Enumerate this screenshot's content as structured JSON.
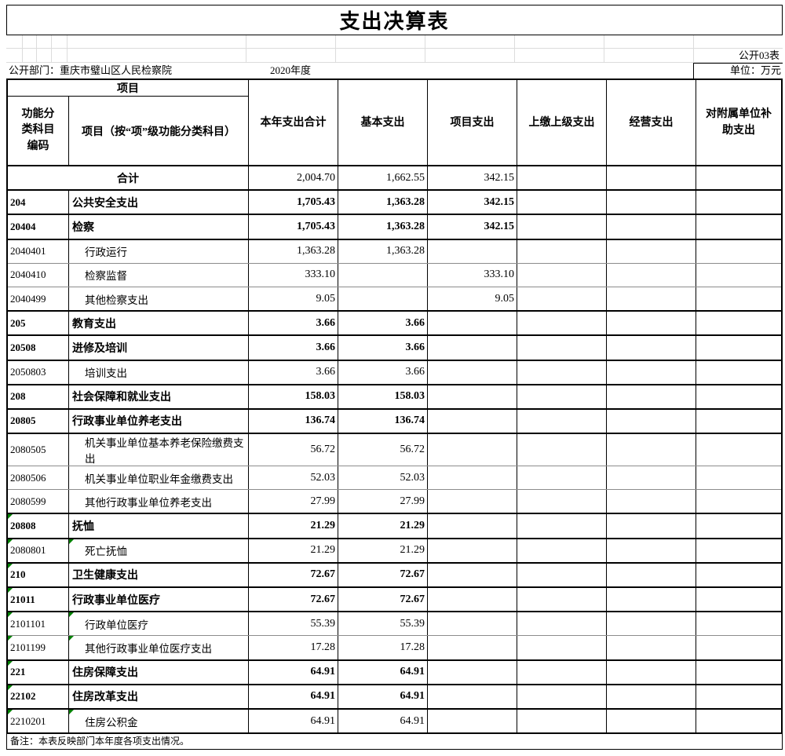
{
  "title": "支出决算表",
  "sheet_label": "公开03表",
  "dept": "公开部门：重庆市璧山区人民检察院",
  "year": "2020年度",
  "unit": "单位：万元",
  "note": "备注：本表反映部门本年度各项支出情况。",
  "colors": {
    "border": "#000000",
    "faint_grid": "#dcdcdc",
    "leaf_row_separator": "#8c8c8c",
    "error_marker_green": "#008000"
  },
  "table": {
    "group_header": "项目",
    "code_header": "功能分类科目编码",
    "name_header": "项目（按“项”级功能分类科目）",
    "columns": [
      "本年支出合计",
      "基本支出",
      "项目支出",
      "上缴上级支出",
      "经营支出",
      "对附属单位补助支出"
    ],
    "rows": [
      {
        "code": "",
        "name": "合计",
        "style": "total",
        "values": [
          "2,004.70",
          "1,662.55",
          "342.15",
          "",
          "",
          ""
        ]
      },
      {
        "code": "204",
        "name": "公共安全支出",
        "style": "sec",
        "values": [
          "1,705.43",
          "1,363.28",
          "342.15",
          "",
          "",
          ""
        ]
      },
      {
        "code": "20404",
        "name": "检察",
        "style": "sec",
        "values": [
          "1,705.43",
          "1,363.28",
          "342.15",
          "",
          "",
          ""
        ]
      },
      {
        "code": "2040401",
        "name": "行政运行",
        "style": "leaf",
        "values": [
          "1,363.28",
          "1,363.28",
          "",
          "",
          "",
          ""
        ]
      },
      {
        "code": "2040410",
        "name": "检察监督",
        "style": "leaf",
        "values": [
          "333.10",
          "",
          "333.10",
          "",
          "",
          ""
        ]
      },
      {
        "code": "2040499",
        "name": "其他检察支出",
        "style": "leaf",
        "values": [
          "9.05",
          "",
          "9.05",
          "",
          "",
          ""
        ]
      },
      {
        "code": "205",
        "name": "教育支出",
        "style": "sec",
        "values": [
          "3.66",
          "3.66",
          "",
          "",
          "",
          ""
        ]
      },
      {
        "code": "20508",
        "name": "进修及培训",
        "style": "sec",
        "values": [
          "3.66",
          "3.66",
          "",
          "",
          "",
          ""
        ]
      },
      {
        "code": "2050803",
        "name": "培训支出",
        "style": "leaf",
        "values": [
          "3.66",
          "3.66",
          "",
          "",
          "",
          ""
        ]
      },
      {
        "code": "208",
        "name": "社会保障和就业支出",
        "style": "sec",
        "values": [
          "158.03",
          "158.03",
          "",
          "",
          "",
          ""
        ]
      },
      {
        "code": "20805",
        "name": "行政事业单位养老支出",
        "style": "sec",
        "values": [
          "136.74",
          "136.74",
          "",
          "",
          "",
          ""
        ]
      },
      {
        "code": "2080505",
        "name": "机关事业单位基本养老保险缴费支出",
        "style": "leaf",
        "values": [
          "56.72",
          "56.72",
          "",
          "",
          "",
          ""
        ]
      },
      {
        "code": "2080506",
        "name": "机关事业单位职业年金缴费支出",
        "style": "leaf",
        "values": [
          "52.03",
          "52.03",
          "",
          "",
          "",
          ""
        ]
      },
      {
        "code": "2080599",
        "name": "其他行政事业单位养老支出",
        "style": "leaf",
        "values": [
          "27.99",
          "27.99",
          "",
          "",
          "",
          ""
        ]
      },
      {
        "code": "20808",
        "name": "抚恤",
        "style": "sec",
        "values": [
          "21.29",
          "21.29",
          "",
          "",
          "",
          ""
        ],
        "marker": "code"
      },
      {
        "code": "2080801",
        "name": "死亡抚恤",
        "style": "leaf",
        "values": [
          "21.29",
          "21.29",
          "",
          "",
          "",
          ""
        ],
        "marker": "both"
      },
      {
        "code": "210",
        "name": "卫生健康支出",
        "style": "sec",
        "values": [
          "72.67",
          "72.67",
          "",
          "",
          "",
          ""
        ],
        "marker": "code"
      },
      {
        "code": "21011",
        "name": "行政事业单位医疗",
        "style": "sec",
        "values": [
          "72.67",
          "72.67",
          "",
          "",
          "",
          ""
        ],
        "marker": "code"
      },
      {
        "code": "2101101",
        "name": "行政单位医疗",
        "style": "leaf",
        "values": [
          "55.39",
          "55.39",
          "",
          "",
          "",
          ""
        ],
        "marker": "both"
      },
      {
        "code": "2101199",
        "name": "其他行政事业单位医疗支出",
        "style": "leaf",
        "values": [
          "17.28",
          "17.28",
          "",
          "",
          "",
          ""
        ],
        "marker": "both"
      },
      {
        "code": "221",
        "name": "住房保障支出",
        "style": "sec",
        "values": [
          "64.91",
          "64.91",
          "",
          "",
          "",
          ""
        ],
        "marker": "code"
      },
      {
        "code": "22102",
        "name": "住房改革支出",
        "style": "sec",
        "values": [
          "64.91",
          "64.91",
          "",
          "",
          "",
          ""
        ],
        "marker": "code"
      },
      {
        "code": "2210201",
        "name": "住房公积金",
        "style": "leaf",
        "values": [
          "64.91",
          "64.91",
          "",
          "",
          "",
          ""
        ],
        "marker": "both"
      }
    ]
  }
}
